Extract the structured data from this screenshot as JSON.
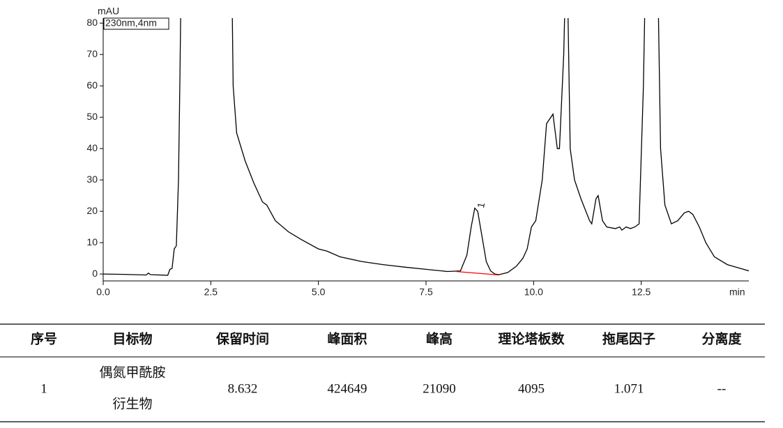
{
  "chart_data": {
    "type": "line",
    "y_label": "mAU",
    "x_label": "min",
    "annotations": [
      {
        "text": "230nm,4nm"
      },
      {
        "text": "1",
        "x": 8.632,
        "y": 21
      }
    ],
    "xlim": [
      0,
      15
    ],
    "ylim": [
      -2.2,
      81.6
    ],
    "xticks": [
      {
        "value": 0,
        "label": "0.0"
      },
      2.5,
      {
        "value": 5,
        "label": "5.0"
      },
      7.5,
      {
        "value": 10,
        "label": "10.0"
      },
      12.5
    ],
    "yticks": [
      0,
      10,
      20,
      30,
      40,
      50,
      60,
      70,
      80
    ],
    "series": [
      {
        "color": "#000000",
        "x": [
          0,
          0.5,
          1.0,
          1.05,
          1.1,
          1.5,
          1.55,
          1.6,
          1.65,
          1.7,
          1.75,
          1.78,
          1.8,
          1.85,
          2.9,
          3.0,
          3.02,
          3.1,
          3.3,
          3.5,
          3.7,
          3.8,
          3.9,
          4.0,
          4.3,
          4.6,
          5.0,
          5.2,
          5.5,
          6.0,
          6.5,
          7.0,
          7.5,
          8.0,
          8.3,
          8.45,
          8.55,
          8.632,
          8.7,
          8.8,
          8.9,
          9.0,
          9.1,
          9.2,
          9.4,
          9.6,
          9.75,
          9.85,
          9.95,
          10.05,
          10.2,
          10.3,
          10.45,
          10.55,
          10.6,
          10.7,
          10.72,
          10.8,
          10.85,
          10.95,
          11.1,
          11.3,
          11.35,
          11.45,
          11.5,
          11.6,
          11.7,
          11.9,
          12.0,
          12.05,
          12.15,
          12.25,
          12.35,
          12.45,
          12.55,
          12.58,
          12.9,
          12.95,
          13.05,
          13.2,
          13.35,
          13.5,
          13.6,
          13.7,
          13.85,
          14.0,
          14.2,
          14.5,
          14.8,
          15.0
        ],
        "values": [
          0,
          -0.1,
          -0.3,
          0.3,
          -0.2,
          -0.4,
          1.5,
          1.8,
          8,
          9,
          30,
          60,
          82,
          82,
          82,
          82,
          60,
          45,
          36,
          29,
          23,
          22,
          19.5,
          17,
          13.5,
          11,
          8,
          7.3,
          5.5,
          4,
          3,
          2.2,
          1.5,
          0.8,
          1,
          6,
          15,
          21,
          20,
          12,
          4,
          1,
          0,
          -0.2,
          0.5,
          2.5,
          5,
          8,
          15,
          17,
          30,
          48,
          51,
          40,
          40,
          70,
          82,
          82,
          40,
          30,
          24,
          17,
          16,
          24,
          25,
          17,
          15,
          14.5,
          15,
          14,
          15,
          14.5,
          15,
          16,
          60,
          82,
          82,
          40,
          22,
          16,
          17,
          19.5,
          20,
          19,
          15,
          10,
          5.5,
          3,
          1.8,
          1
        ]
      },
      {
        "color": "#ff0000",
        "x": [
          8.2,
          9.2
        ],
        "values": [
          0.8,
          -0.3
        ]
      }
    ]
  },
  "table": {
    "header": [
      "序号",
      "目标物",
      "保留时间",
      "峰面积",
      "峰高",
      "理论塔板数",
      "拖尾因子",
      "分离度"
    ],
    "rows": [
      [
        "1",
        [
          "偶氮甲酰胺",
          "衍生物"
        ],
        "8.632",
        "424649",
        "21090",
        "4095",
        "1.071",
        "--"
      ]
    ]
  }
}
